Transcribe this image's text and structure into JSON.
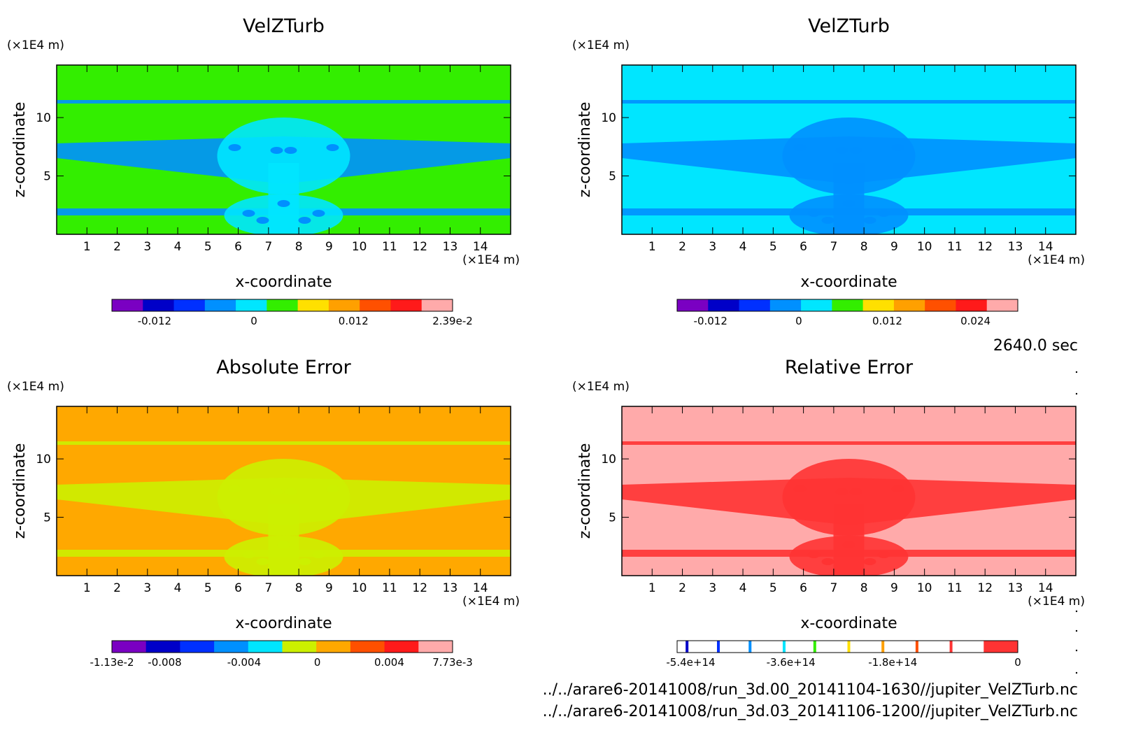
{
  "chart_data": [
    {
      "type": "heatmap",
      "title": "VelZTurb",
      "xlabel": "x-coordinate",
      "ylabel": "z-coordinate",
      "x_unit": "(×1E4 m)",
      "y_unit": "(×1E4 m)",
      "xlim": [
        0,
        15
      ],
      "ylim": [
        0,
        14.5
      ],
      "x_ticks": [
        "1",
        "2",
        "3",
        "4",
        "5",
        "6",
        "7",
        "8",
        "9",
        "10",
        "11",
        "12",
        "13",
        "14"
      ],
      "y_ticks": [
        "5",
        "10"
      ],
      "background_color": "#33ee00",
      "colorbar": {
        "colors": [
          "#7a00c2",
          "#0000c8",
          "#0030ff",
          "#0090ff",
          "#00e6ff",
          "#33ee00",
          "#ffe000",
          "#ffa000",
          "#ff5000",
          "#ff1a1a",
          "#ffaaaa"
        ],
        "tick_labels": [
          "-0.012",
          "0",
          "0.012",
          "2.39e-2"
        ]
      }
    },
    {
      "type": "heatmap",
      "title": "VelZTurb",
      "xlabel": "x-coordinate",
      "ylabel": "z-coordinate",
      "x_unit": "(×1E4 m)",
      "y_unit": "(×1E4 m)",
      "xlim": [
        0,
        15
      ],
      "ylim": [
        0,
        14.5
      ],
      "x_ticks": [
        "1",
        "2",
        "3",
        "4",
        "5",
        "6",
        "7",
        "8",
        "9",
        "10",
        "11",
        "12",
        "13",
        "14"
      ],
      "y_ticks": [
        "5",
        "10"
      ],
      "background_color": "#00e6ff",
      "colorbar": {
        "colors": [
          "#7a00c2",
          "#0000c8",
          "#0030ff",
          "#0090ff",
          "#00e6ff",
          "#33ee00",
          "#ffe000",
          "#ffa000",
          "#ff5000",
          "#ff1a1a",
          "#ffaaaa"
        ],
        "tick_labels": [
          "-0.012",
          "0",
          "0.012",
          "0.024"
        ]
      }
    },
    {
      "type": "heatmap",
      "title": "Absolute Error",
      "xlabel": "x-coordinate",
      "ylabel": "z-coordinate",
      "x_unit": "(×1E4 m)",
      "y_unit": "(×1E4 m)",
      "xlim": [
        0,
        15
      ],
      "ylim": [
        0,
        14.5
      ],
      "x_ticks": [
        "1",
        "2",
        "3",
        "4",
        "5",
        "6",
        "7",
        "8",
        "9",
        "10",
        "11",
        "12",
        "13",
        "14"
      ],
      "y_ticks": [
        "5",
        "10"
      ],
      "background_color": "#ffa800",
      "colorbar": {
        "colors": [
          "#7a00c2",
          "#0000c8",
          "#0030ff",
          "#0090ff",
          "#00e6ff",
          "#ccf000",
          "#ffa800",
          "#ff5000",
          "#ff1a1a",
          "#ffaaaa"
        ],
        "tick_labels": [
          "-1.13e-2",
          "-0.008",
          "-0.004",
          "0",
          "0.004",
          "7.73e-3"
        ]
      }
    },
    {
      "type": "heatmap",
      "title": "Relative Error",
      "xlabel": "x-coordinate",
      "ylabel": "z-coordinate",
      "x_unit": "(×1E4 m)",
      "y_unit": "(×1E4 m)",
      "xlim": [
        0,
        15
      ],
      "ylim": [
        0,
        14.5
      ],
      "x_ticks": [
        "1",
        "2",
        "3",
        "4",
        "5",
        "6",
        "7",
        "8",
        "9",
        "10",
        "11",
        "12",
        "13",
        "14"
      ],
      "y_ticks": [
        "5",
        "10"
      ],
      "background_color": "#ffaaaa",
      "colorbar": {
        "colors": [
          "#0000c8",
          "#0030ff",
          "#0090ff",
          "#00e6ff",
          "#33ee00",
          "#ffe000",
          "#ffa000",
          "#ff5000",
          "#ff3333"
        ],
        "tick_labels": [
          "-5.4e+14",
          "-3.6e+14",
          "-1.8e+14",
          "0"
        ]
      }
    }
  ],
  "time_label": "2640.0 sec",
  "files": [
    "../../arare6-20141008/run_3d.00_20141104-1630//jupiter_VelZTurb.nc",
    "../../arare6-20141008/run_3d.03_20141106-1200//jupiter_VelZTurb.nc"
  ]
}
